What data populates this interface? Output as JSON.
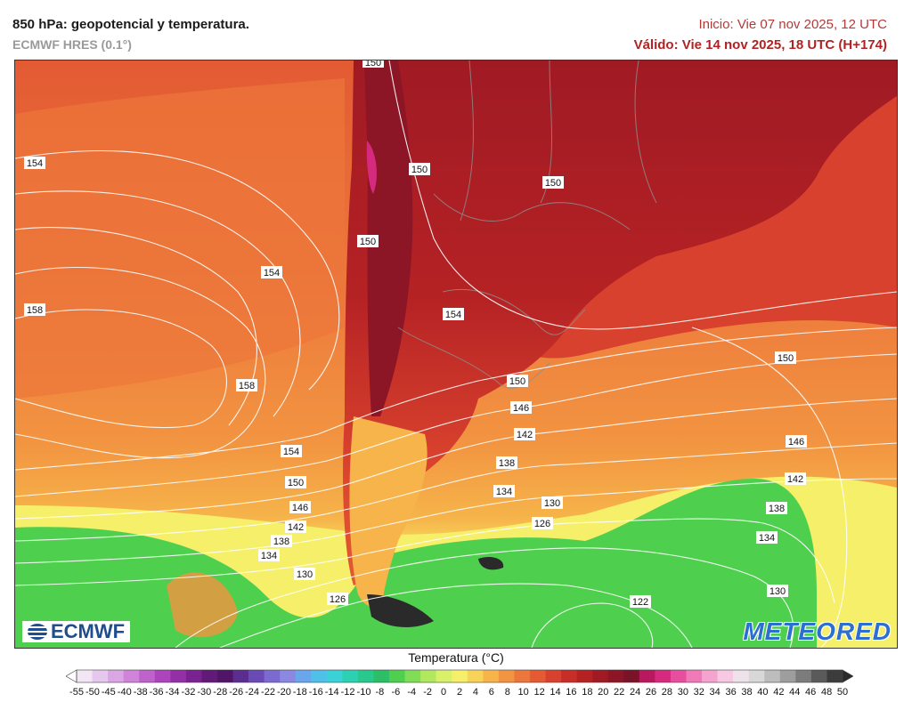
{
  "header": {
    "title": "850 hPa: geopotencial y temperatura.",
    "model": "ECMWF HRES (0.1°)",
    "init": "Inicio: Vie 07 nov 2025, 12 UTC",
    "valid": "Válido: Vie 14 nov 2025, 18 UTC (H+174)"
  },
  "logos": {
    "ecmwf": "ECMWF",
    "meteored": "METEORED"
  },
  "colorbar": {
    "title": "Temperatura (°C)",
    "ticks": [
      "-55",
      "-50",
      "-45",
      "-40",
      "-38",
      "-36",
      "-34",
      "-32",
      "-30",
      "-28",
      "-26",
      "-24",
      "-22",
      "-20",
      "-18",
      "-16",
      "-14",
      "-12",
      "-10",
      "-8",
      "-6",
      "-4",
      "-2",
      "0",
      "2",
      "4",
      "6",
      "8",
      "10",
      "12",
      "14",
      "16",
      "18",
      "20",
      "22",
      "24",
      "26",
      "28",
      "30",
      "32",
      "34",
      "36",
      "38",
      "40",
      "42",
      "44",
      "46",
      "48",
      "50"
    ],
    "colors": [
      "#f2e6f5",
      "#e6c8ee",
      "#dba6e4",
      "#cf84d9",
      "#c062cc",
      "#ac44bb",
      "#9430a6",
      "#7a2390",
      "#621a78",
      "#501566",
      "#5b2d8f",
      "#6a4bb5",
      "#7d6ad1",
      "#8a88e0",
      "#6aa6ec",
      "#4ec0ea",
      "#3ad2d8",
      "#2cd1b4",
      "#28c98d",
      "#2cbf66",
      "#4fcf4e",
      "#80dd55",
      "#b0e860",
      "#d8f06a",
      "#f5ef6a",
      "#f8d35a",
      "#f6b44a",
      "#f29441",
      "#ec763b",
      "#e35a33",
      "#d8412d",
      "#c72e28",
      "#b52224",
      "#a01a24",
      "#8c1526",
      "#7a1228",
      "#b8195e",
      "#d62a7e",
      "#e64f9d",
      "#f07ab8",
      "#f5a3cf",
      "#f7c8e2",
      "#eee3ea",
      "#d8d8d8",
      "#bdbdbd",
      "#9e9e9e",
      "#7c7c7c",
      "#5a5a5a",
      "#3c3c3c"
    ]
  },
  "contours": [
    {
      "label": "154"
    },
    {
      "label": "158"
    },
    {
      "label": "154"
    },
    {
      "label": "158"
    },
    {
      "label": "150"
    },
    {
      "label": "150"
    },
    {
      "label": "150"
    },
    {
      "label": "154"
    },
    {
      "label": "150"
    },
    {
      "label": "150"
    },
    {
      "label": "146"
    },
    {
      "label": "142"
    },
    {
      "label": "138"
    },
    {
      "label": "134"
    },
    {
      "label": "130"
    },
    {
      "label": "126"
    },
    {
      "label": "154"
    },
    {
      "label": "150"
    },
    {
      "label": "146"
    },
    {
      "label": "142"
    },
    {
      "label": "138"
    },
    {
      "label": "134"
    },
    {
      "label": "130"
    },
    {
      "label": "126"
    },
    {
      "label": "146"
    },
    {
      "label": "142"
    },
    {
      "label": "138"
    },
    {
      "label": "134"
    },
    {
      "label": "130"
    },
    {
      "label": "122"
    },
    {
      "label": "150"
    }
  ]
}
